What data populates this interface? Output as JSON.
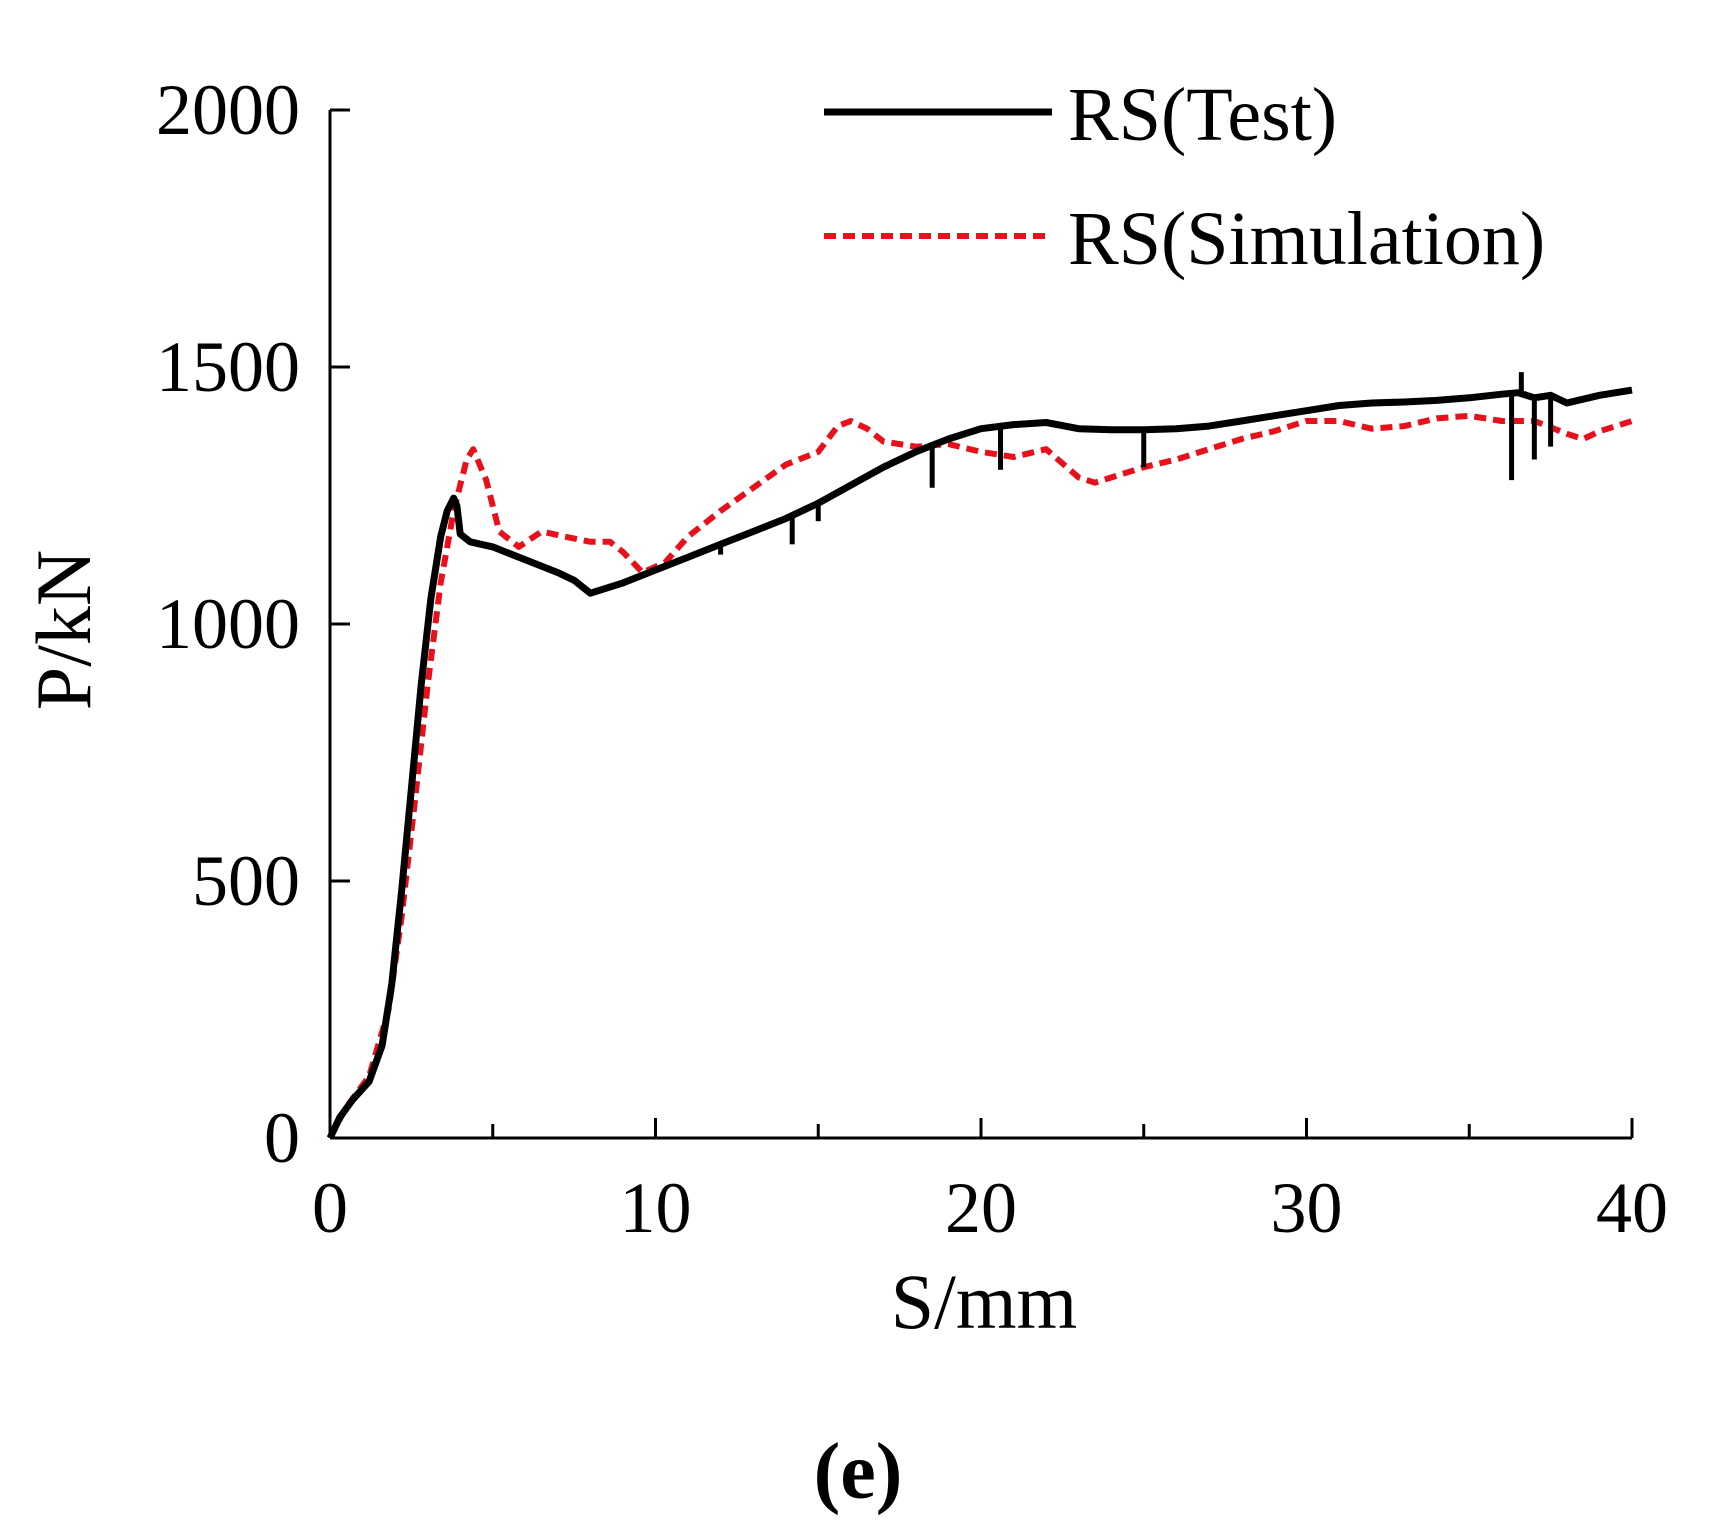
{
  "chart_data": {
    "type": "line",
    "xlabel": "S/mm",
    "ylabel": "P/kN",
    "xlim": [
      0,
      40
    ],
    "ylim": [
      0,
      2000
    ],
    "x_ticks": [
      0,
      10,
      20,
      30,
      40
    ],
    "y_ticks": [
      0,
      500,
      1000,
      1500,
      2000
    ],
    "x_minor_ticks": [
      5,
      15,
      25,
      35
    ],
    "grid": false,
    "legend_position": "top-right",
    "colors": {
      "test": "#000000",
      "simulation": "#e8101a"
    },
    "series": [
      {
        "name": "RS(Test)",
        "style": "solid",
        "points": [
          [
            0,
            0
          ],
          [
            0.3,
            40
          ],
          [
            0.7,
            75
          ],
          [
            1.2,
            110
          ],
          [
            1.6,
            180
          ],
          [
            1.9,
            300
          ],
          [
            2.2,
            480
          ],
          [
            2.5,
            680
          ],
          [
            2.8,
            880
          ],
          [
            3.1,
            1050
          ],
          [
            3.4,
            1170
          ],
          [
            3.6,
            1220
          ],
          [
            3.8,
            1245
          ],
          [
            3.9,
            1230
          ],
          [
            4.0,
            1175
          ],
          [
            4.3,
            1160
          ],
          [
            5,
            1150
          ],
          [
            6,
            1125
          ],
          [
            7,
            1100
          ],
          [
            7.5,
            1085
          ],
          [
            8,
            1060
          ],
          [
            9,
            1080
          ],
          [
            10,
            1105
          ],
          [
            11,
            1130
          ],
          [
            12,
            1155
          ],
          [
            13,
            1180
          ],
          [
            14,
            1205
          ],
          [
            15,
            1235
          ],
          [
            16,
            1270
          ],
          [
            17,
            1305
          ],
          [
            18,
            1335
          ],
          [
            19,
            1360
          ],
          [
            20,
            1380
          ],
          [
            21,
            1388
          ],
          [
            22,
            1392
          ],
          [
            23,
            1380
          ],
          [
            24,
            1378
          ],
          [
            25,
            1378
          ],
          [
            26,
            1380
          ],
          [
            27,
            1385
          ],
          [
            28,
            1395
          ],
          [
            29,
            1405
          ],
          [
            30,
            1415
          ],
          [
            31,
            1425
          ],
          [
            32,
            1430
          ],
          [
            33,
            1432
          ],
          [
            34,
            1435
          ],
          [
            35,
            1440
          ],
          [
            36,
            1447
          ],
          [
            36.5,
            1450
          ],
          [
            37,
            1440
          ],
          [
            37.5,
            1445
          ],
          [
            38,
            1430
          ],
          [
            39,
            1445
          ],
          [
            40,
            1455
          ]
        ],
        "drops": [
          [
            12,
            1135
          ],
          [
            14.2,
            1155
          ],
          [
            15,
            1200
          ],
          [
            18.5,
            1265
          ],
          [
            20.6,
            1300
          ],
          [
            25,
            1305
          ],
          [
            36.3,
            1280
          ],
          [
            37,
            1320
          ],
          [
            37.5,
            1345
          ]
        ],
        "spikes": [
          [
            36.6,
            1490
          ]
        ]
      },
      {
        "name": "RS(Simulation)",
        "style": "dashed",
        "points": [
          [
            0,
            0
          ],
          [
            0.5,
            60
          ],
          [
            1.2,
            120
          ],
          [
            1.8,
            250
          ],
          [
            2.2,
            430
          ],
          [
            2.6,
            650
          ],
          [
            3,
            880
          ],
          [
            3.4,
            1080
          ],
          [
            3.8,
            1220
          ],
          [
            4.2,
            1320
          ],
          [
            4.4,
            1340
          ],
          [
            4.8,
            1280
          ],
          [
            5.2,
            1180
          ],
          [
            5.8,
            1150
          ],
          [
            6.5,
            1180
          ],
          [
            7.2,
            1170
          ],
          [
            8,
            1160
          ],
          [
            8.6,
            1160
          ],
          [
            9,
            1140
          ],
          [
            9.6,
            1100
          ],
          [
            10.3,
            1120
          ],
          [
            11,
            1170
          ],
          [
            12,
            1220
          ],
          [
            13,
            1265
          ],
          [
            14,
            1310
          ],
          [
            15,
            1335
          ],
          [
            15.6,
            1385
          ],
          [
            16,
            1395
          ],
          [
            16.5,
            1380
          ],
          [
            17,
            1355
          ],
          [
            18,
            1345
          ],
          [
            19,
            1350
          ],
          [
            20,
            1335
          ],
          [
            21,
            1325
          ],
          [
            22,
            1340
          ],
          [
            23,
            1285
          ],
          [
            23.5,
            1275
          ],
          [
            24,
            1285
          ],
          [
            25,
            1305
          ],
          [
            26,
            1320
          ],
          [
            27,
            1340
          ],
          [
            28,
            1360
          ],
          [
            29,
            1375
          ],
          [
            30,
            1395
          ],
          [
            31,
            1395
          ],
          [
            32,
            1380
          ],
          [
            33,
            1385
          ],
          [
            34,
            1400
          ],
          [
            35,
            1405
          ],
          [
            36,
            1395
          ],
          [
            37,
            1395
          ],
          [
            38,
            1370
          ],
          [
            38.5,
            1360
          ],
          [
            39,
            1375
          ],
          [
            40,
            1395
          ]
        ]
      }
    ],
    "caption": "(e)"
  }
}
